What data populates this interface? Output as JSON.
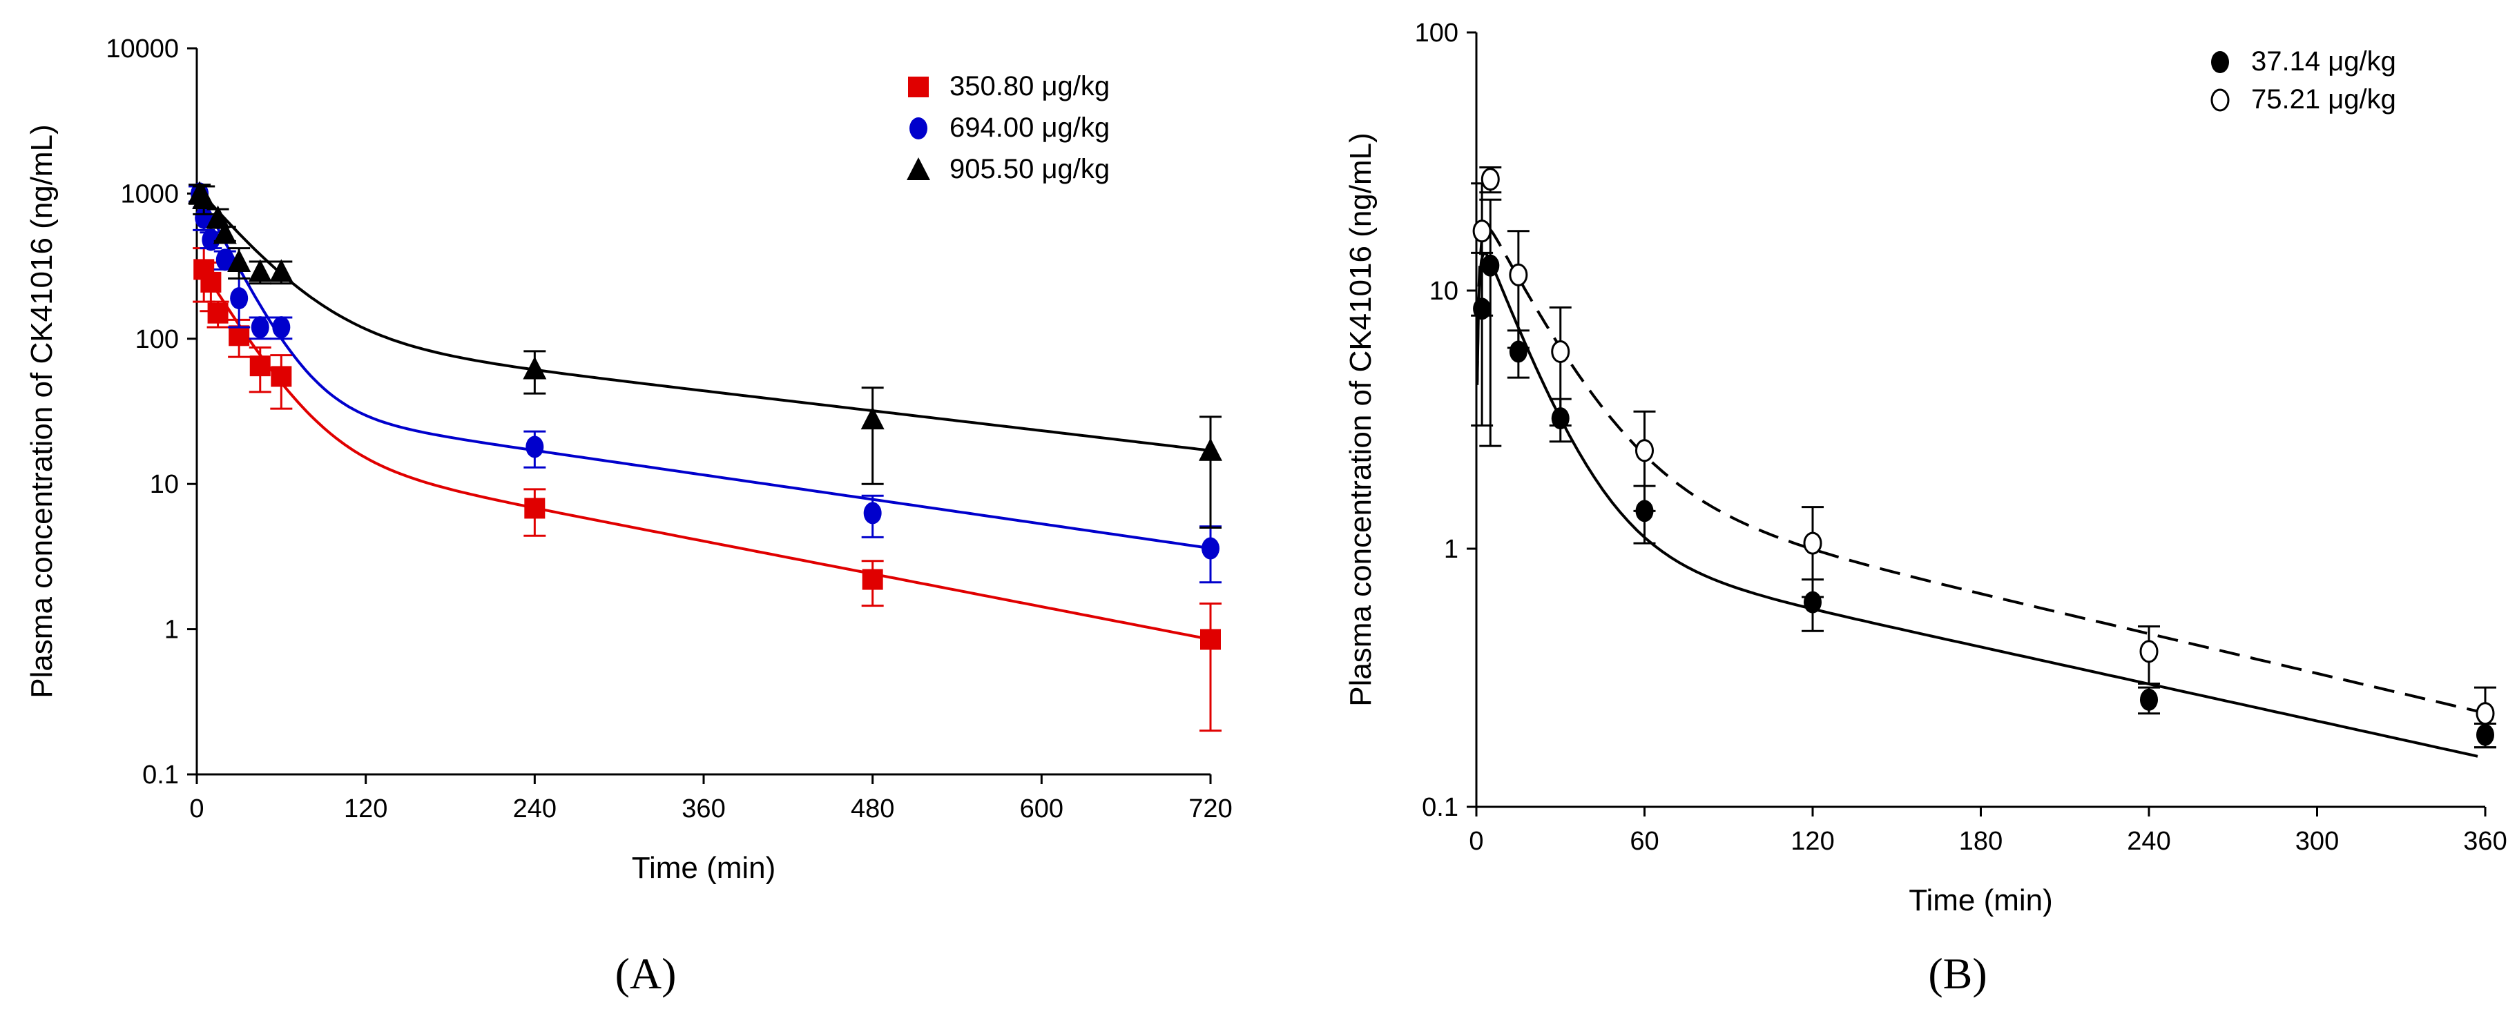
{
  "chart_data": [
    {
      "type": "scatter",
      "panel_label": "(A)",
      "xlabel": "Time (min)",
      "ylabel": "Plasma concentration of CK41016 (ng/mL)",
      "yscale": "log",
      "xlim": [
        0,
        720
      ],
      "ylim": [
        0.1,
        10000
      ],
      "xticks": [
        "0",
        "120",
        "240",
        "360",
        "480",
        "600",
        "720"
      ],
      "yticks": [
        "0.1",
        "1",
        "10",
        "100",
        "1000",
        "10000"
      ],
      "legend_position": "top-right",
      "series": [
        {
          "name": "350.80 μg/kg",
          "color": "#e00000",
          "marker": "square",
          "x": [
            5,
            10,
            15,
            30,
            45,
            60,
            240,
            480,
            720
          ],
          "y": [
            300,
            245,
            150,
            105,
            65,
            55,
            6.8,
            2.2,
            0.85
          ],
          "err": [
            120,
            90,
            30,
            30,
            22,
            22,
            2.4,
            0.75,
            0.65
          ],
          "fit": {
            "A": 331,
            "a": 0.0374,
            "B": 19.2,
            "b": 0.00433,
            "k": 0
          }
        },
        {
          "name": "694.00 μg/kg",
          "color": "#0000cc",
          "marker": "circle",
          "x": [
            2,
            5,
            10,
            20,
            30,
            45,
            60,
            240,
            480,
            720
          ],
          "y": [
            1000,
            680,
            480,
            350,
            190,
            120,
            120,
            18,
            6.3,
            3.6
          ],
          "err": [
            120,
            120,
            60,
            50,
            70,
            20,
            20,
            5,
            2,
            1.5
          ],
          "fit": {
            "A": 1063,
            "a": 0.0453,
            "B": 36.9,
            "b": 0.00323,
            "k": 0
          }
        },
        {
          "name": "905.50 μg/kg",
          "color": "#000000",
          "marker": "triangle",
          "x": [
            2,
            5,
            15,
            20,
            30,
            45,
            60,
            240,
            480,
            720
          ],
          "y": [
            1000,
            920,
            680,
            530,
            340,
            290,
            290,
            62,
            28,
            17
          ],
          "err": [
            150,
            200,
            100,
            60,
            80,
            50,
            50,
            20,
            18,
            12
          ],
          "fit": {
            "A": 987,
            "a": 0.028,
            "B": 112.8,
            "b": 0.00263,
            "k": 0
          }
        }
      ]
    },
    {
      "type": "scatter",
      "panel_label": "(B)",
      "xlabel": "Time (min)",
      "ylabel": "Plasma concentration of CK41016 (ng/mL)",
      "yscale": "log",
      "xlim": [
        0,
        360
      ],
      "ylim": [
        0.1,
        100
      ],
      "xticks": [
        "0",
        "60",
        "120",
        "180",
        "240",
        "300",
        "360"
      ],
      "yticks": [
        "0.1",
        "1",
        "10",
        "100"
      ],
      "legend_position": "top-right",
      "series": [
        {
          "name": "37.14 μg/kg",
          "color": "#000000",
          "marker": "filled-circle",
          "line": "solid",
          "x": [
            2,
            5,
            15,
            30,
            60,
            120,
            240,
            360
          ],
          "y": [
            8.5,
            12.5,
            5.8,
            3.2,
            1.4,
            0.62,
            0.26,
            0.19
          ],
          "err": [
            5.5,
            10,
            1.2,
            0.6,
            0.35,
            0.14,
            0.03,
            0.02
          ],
          "fit": {
            "A": 16.8,
            "a": 0.067,
            "B": 1.12,
            "b": 0.0055,
            "k": 1.0
          }
        },
        {
          "name": "75.21 μg/kg",
          "color": "#000000",
          "marker": "open-circle",
          "line": "dashed",
          "x": [
            2,
            5,
            15,
            30,
            60,
            120,
            240,
            360
          ],
          "y": [
            17,
            27,
            11.5,
            5.8,
            2.4,
            1.05,
            0.4,
            0.23
          ],
          "err": [
            9,
            3,
            5.5,
            2.8,
            1.0,
            0.4,
            0.1,
            0.06
          ],
          "fit": {
            "A": 20.3,
            "a": 0.051,
            "B": 1.93,
            "b": 0.0059,
            "k": 0.8
          }
        }
      ]
    }
  ]
}
